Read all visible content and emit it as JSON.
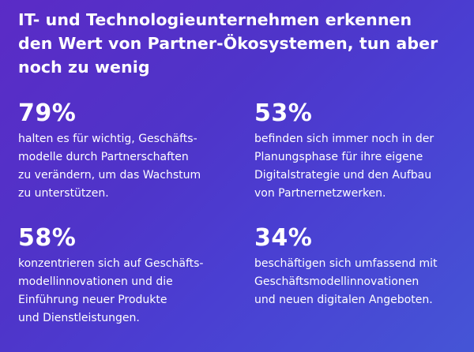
{
  "headline": {
    "lines": [
      "IT- und Technologieunternehmen erkennen",
      "den Wert von Partner-Ökosystemen, tun aber",
      "noch zu wenig"
    ]
  },
  "stats": [
    {
      "value": "79%",
      "lines": [
        "halten es für wichtig, Geschäfts-",
        "modelle durch Partnerschaften",
        "zu verändern, um das Wachstum",
        "zu unterstützen."
      ]
    },
    {
      "value": "53%",
      "lines": [
        "befinden sich immer noch in der",
        "Planungsphase für ihre eigene",
        "Digitalstrategie und den Aufbau",
        "von Partnernetzwerken."
      ]
    },
    {
      "value": "58%",
      "lines": [
        "konzentrieren sich auf Geschäfts-",
        "modellinnovationen und die",
        "Einführung neuer Produkte",
        "und Dienstleistungen."
      ]
    },
    {
      "value": "34%",
      "lines": [
        "beschäftigen sich umfassend mit",
        "Geschäftsmodellinnovationen",
        "und neuen digitalen Angeboten."
      ]
    }
  ]
}
